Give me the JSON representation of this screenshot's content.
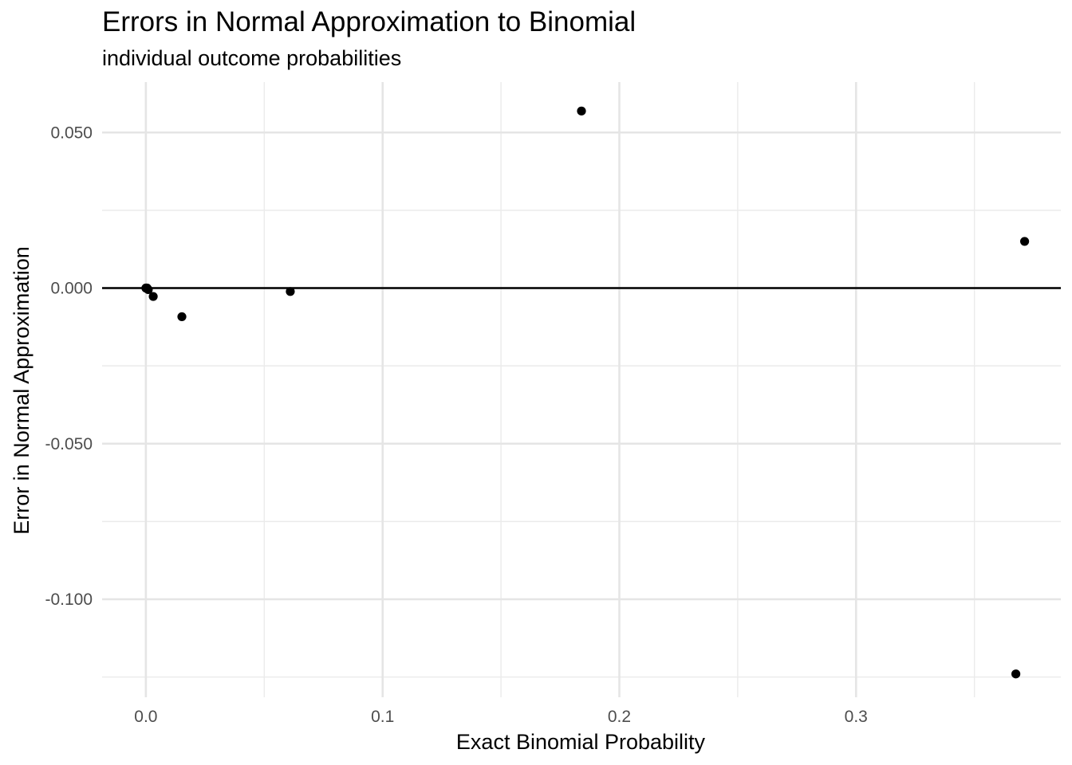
{
  "chart_data": {
    "type": "scatter",
    "title": "Errors in Normal Approximation to Binomial",
    "subtitle": "individual outcome probabilities",
    "xlabel": "Exact Binomial Probability",
    "ylabel": "Error in Normal Approximation",
    "xlim": [
      -0.0185,
      0.3865
    ],
    "ylim": [
      -0.1315,
      0.0662
    ],
    "x_ticks": [
      0.0,
      0.1,
      0.2,
      0.3
    ],
    "x_tick_labels": [
      "0.0",
      "0.1",
      "0.2",
      "0.3"
    ],
    "x_minor_ticks": [
      0.05,
      0.15,
      0.25,
      0.35
    ],
    "y_ticks": [
      0.05,
      0.0,
      -0.05,
      -0.1
    ],
    "y_tick_labels": [
      "0.050",
      "0.000",
      "-0.050",
      "-0.100"
    ],
    "y_minor_ticks": [
      0.025,
      -0.025,
      -0.075,
      -0.125
    ],
    "grid": true,
    "reference_line_y": 0.0,
    "point_color": "#000000",
    "points": [
      {
        "x": 0.0,
        "y": 0.0
      },
      {
        "x": 0.0001,
        "y": 0.0
      },
      {
        "x": 0.0005,
        "y": 0.0
      },
      {
        "x": 0.001,
        "y": -0.0005
      },
      {
        "x": 0.0031,
        "y": -0.0027
      },
      {
        "x": 0.0152,
        "y": -0.0092
      },
      {
        "x": 0.061,
        "y": -0.0011
      },
      {
        "x": 0.184,
        "y": 0.0569
      },
      {
        "x": 0.3675,
        "y": -0.124
      },
      {
        "x": 0.3712,
        "y": 0.015
      }
    ]
  }
}
